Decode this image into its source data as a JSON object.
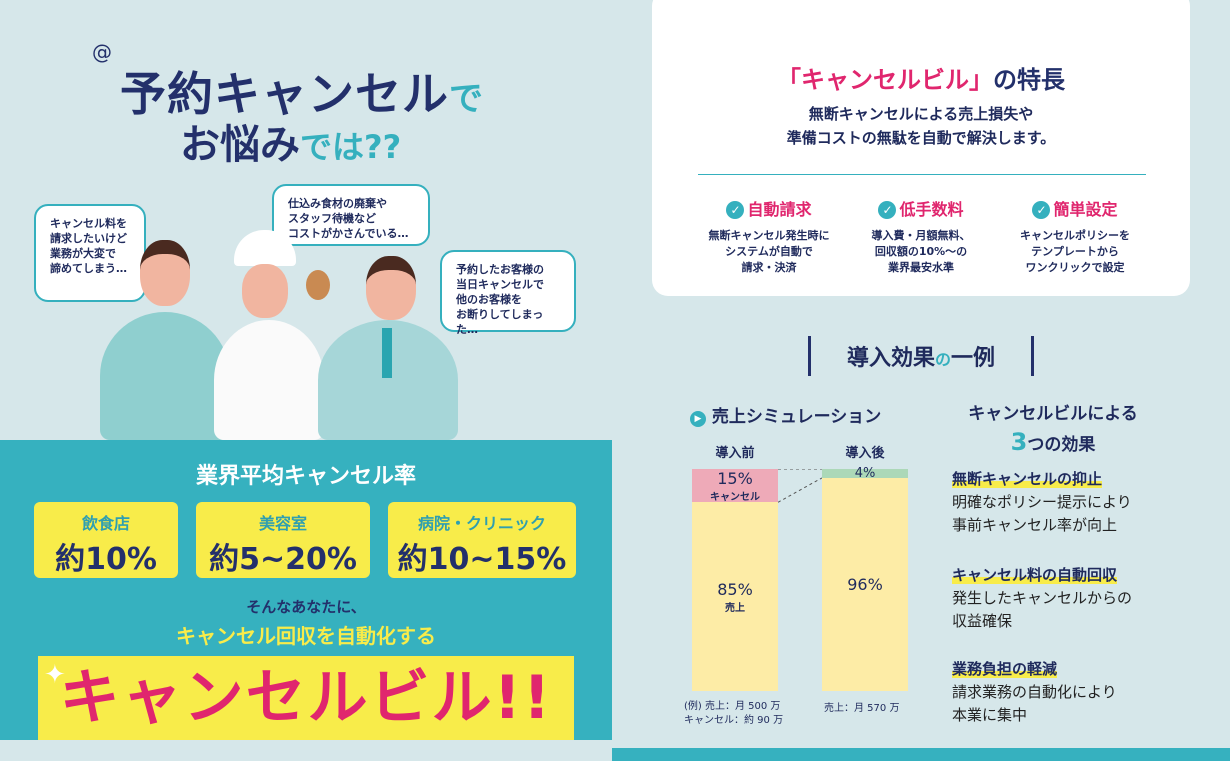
{
  "headline": {
    "line1_main": "予約キャンセル",
    "line1_suffix": "で",
    "line2_main": "お悩み",
    "line2_suffix": "では??"
  },
  "bubbles": [
    {
      "text": "キャンセル料を\n請求したいけど\n業務が大変で\n諦めてしまう…"
    },
    {
      "text": "仕込み食材の廃棄や\nスタッフ待機など\nコストがかさんでいる…"
    },
    {
      "text": "予約したお客様の\n当日キャンセルで\n他のお客様を\nお断りしてしまった…"
    }
  ],
  "rates": {
    "title": "業界平均キャンセル率",
    "items": [
      {
        "name": "飲食店",
        "value": "約10%"
      },
      {
        "name": "美容室",
        "value": "約5~20%"
      },
      {
        "name": "病院・クリニック",
        "value": "約10~15%"
      }
    ]
  },
  "cta": {
    "line1": "そんなあなたに、",
    "line2": "キャンセル回収を自動化する",
    "product": "キャンセルビル!!"
  },
  "features": {
    "title_pre": "「キャンセルビル」",
    "title_post": "の特長",
    "desc": "無断キャンセルによる売上損失や\n準備コストの無駄を自動で解決します。",
    "items": [
      {
        "title": "自動請求",
        "desc": "無断キャンセル発生時に\nシステムが自動で\n請求・決済"
      },
      {
        "title": "低手数料",
        "desc": "導入費・月額無料、\n回収額の10%～の\n業界最安水準"
      },
      {
        "title": "簡単設定",
        "desc": "キャンセルポリシーを\nテンプレートから\nワンクリックで設定"
      }
    ]
  },
  "effect_title": {
    "main1": "導入効果",
    "no": "の",
    "main2": "一例"
  },
  "chart_data": {
    "type": "bar",
    "stacked": true,
    "title": "売上シミュレーション",
    "categories": [
      "導入前",
      "導入後"
    ],
    "series": [
      {
        "name": "売上",
        "values": [
          85,
          96
        ],
        "color": "#fdeca6"
      },
      {
        "name": "キャンセル",
        "values": [
          15,
          4
        ],
        "colors": [
          "#eeaab8",
          "#acd8b8"
        ]
      }
    ],
    "labels": {
      "before_sales": "85%",
      "before_sales_sub": "売上",
      "before_cancel": "15%",
      "before_cancel_sub": "キャンセル",
      "after_sales": "96%",
      "after_cancel": "4%"
    },
    "notes": [
      "(例) 売上：月 500 万\nキャンセル：約 90 万",
      "売上：月 570 万"
    ]
  },
  "three": {
    "line1": "キャンセルビルによる",
    "num": "3",
    "line2": "つの効果",
    "items": [
      {
        "title": "無断キャンセルの抑止",
        "desc": "明確なポリシー提示により\n事前キャンセル率が向上"
      },
      {
        "title": "キャンセル料の自動回収",
        "desc": "発生したキャンセルからの\n収益確保"
      },
      {
        "title": "業務負担の軽減",
        "desc": "請求業務の自動化により\n本業に集中"
      }
    ]
  }
}
